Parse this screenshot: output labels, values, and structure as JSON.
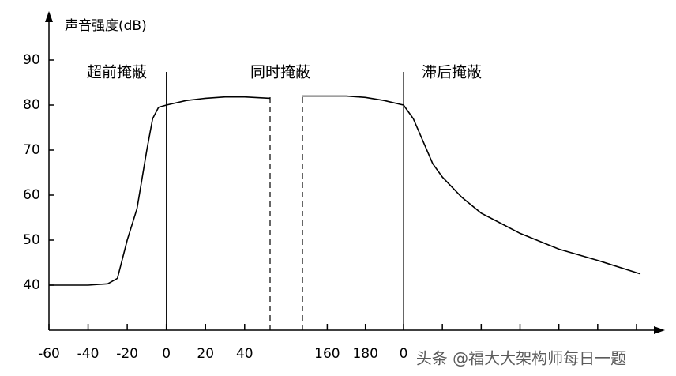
{
  "chart_data": {
    "type": "line",
    "y_label": "声音强度(dB)",
    "ylim": [
      30,
      100
    ],
    "yticks": [
      40,
      50,
      60,
      70,
      80,
      90
    ],
    "color": "#000000",
    "regions": [
      "超前掩蔽",
      "同时掩蔽",
      "滞后掩蔽"
    ],
    "segments": [
      {
        "xlim": [
          -60,
          53
        ],
        "xticks": [
          -60,
          -40,
          -20,
          0,
          20,
          40
        ],
        "solid_lines": [
          0
        ],
        "dashed_lines": [
          53
        ],
        "x": [
          -60,
          -40,
          -30,
          -25,
          -20,
          -15,
          -10,
          -7,
          -4,
          0,
          10,
          20,
          30,
          40,
          53
        ],
        "values": [
          40,
          40,
          40.3,
          41.5,
          50,
          57,
          70,
          77,
          79.5,
          80,
          81,
          81.5,
          81.8,
          81.8,
          81.5
        ]
      },
      {
        "xlim": [
          147,
          200
        ],
        "xticks": [
          160,
          180
        ],
        "solid_lines": [],
        "dashed_lines": [
          147
        ],
        "x": [
          147,
          160,
          170,
          180,
          190,
          200
        ],
        "values": [
          82,
          82,
          82,
          81.7,
          81,
          80
        ]
      },
      {
        "xlim": [
          0,
          120
        ],
        "xticks": [
          0
        ],
        "minor_xticks": [
          20,
          40,
          60,
          80,
          100,
          120
        ],
        "solid_lines": [
          0
        ],
        "dashed_lines": [],
        "x": [
          0,
          5,
          10,
          15,
          20,
          30,
          40,
          60,
          80,
          100,
          122
        ],
        "values": [
          80,
          77,
          72,
          67,
          64,
          59.5,
          56,
          51.5,
          48,
          45.5,
          42.5
        ]
      }
    ],
    "watermark": "头条 @福大大架构师每日一题"
  }
}
